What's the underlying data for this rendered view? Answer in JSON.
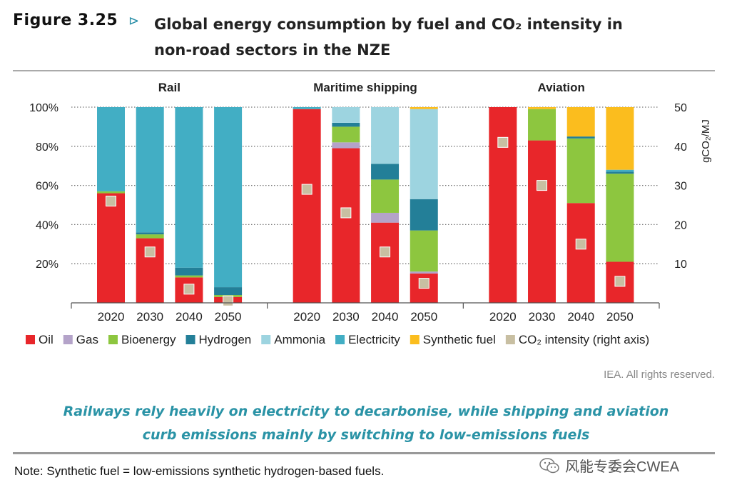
{
  "figure": {
    "label": "Figure 3.25",
    "arrow": "⊳",
    "title": "Global energy consumption by fuel and CO₂ intensity in non-road sectors in the NZE"
  },
  "rights": "IEA. All rights reserved.",
  "caption": {
    "line1": "Railways rely heavily on electricity to decarbonise, while shipping and aviation",
    "line2": "curb emissions mainly by switching to low-emissions fuels"
  },
  "note": "Note: Synthetic fuel = low-emissions synthetic hydrogen-based fuels.",
  "watermark": "风能专委会CWEA",
  "colors": {
    "Oil": "#e8262a",
    "Gas": "#b4a3c9",
    "Bioenergy": "#8dc63f",
    "Hydrogen": "#237f98",
    "Ammonia": "#9dd4e0",
    "Electricity": "#42aec4",
    "Synthetic fuel": "#fbbd1e",
    "CO2 intensity": "#c8bfa2"
  },
  "chart_data": {
    "type": "bar",
    "stacked": true,
    "y_left": {
      "ylim": [
        0,
        100
      ],
      "ticks": [
        20,
        40,
        60,
        80,
        100
      ],
      "tick_labels": [
        "20%",
        "40%",
        "60%",
        "80%",
        "100%"
      ]
    },
    "y_right": {
      "ylim": [
        0,
        50
      ],
      "ticks": [
        10,
        20,
        30,
        40,
        50
      ],
      "tick_labels": [
        "10",
        "20",
        "30",
        "40",
        "50"
      ],
      "label": "gCO₂/MJ"
    },
    "fuels": [
      "Oil",
      "Gas",
      "Bioenergy",
      "Hydrogen",
      "Ammonia",
      "Electricity",
      "Synthetic fuel"
    ],
    "legend": [
      "Oil",
      "Gas",
      "Bioenergy",
      "Hydrogen",
      "Ammonia",
      "Electricity",
      "Synthetic fuel",
      "CO₂ intensity (right axis)"
    ],
    "panels": [
      {
        "title": "Rail",
        "categories": [
          "2020",
          "2030",
          "2040",
          "2050"
        ],
        "series": [
          {
            "name": "Oil",
            "values": [
              56,
              33,
              13,
              3
            ]
          },
          {
            "name": "Gas",
            "values": [
              0,
              0,
              0,
              0
            ]
          },
          {
            "name": "Bioenergy",
            "values": [
              1,
              2,
              1,
              1
            ]
          },
          {
            "name": "Hydrogen",
            "values": [
              0,
              1,
              4,
              4
            ]
          },
          {
            "name": "Ammonia",
            "values": [
              0,
              0,
              0,
              0
            ]
          },
          {
            "name": "Electricity",
            "values": [
              43,
              64,
              82,
              92
            ]
          },
          {
            "name": "Synthetic fuel",
            "values": [
              0,
              0,
              0,
              0
            ]
          }
        ],
        "co2_intensity": [
          26,
          13,
          3.5,
          0.5
        ]
      },
      {
        "title": "Maritime shipping",
        "categories": [
          "2020",
          "2030",
          "2040",
          "2050"
        ],
        "series": [
          {
            "name": "Oil",
            "values": [
              99,
              79,
              41,
              15
            ]
          },
          {
            "name": "Gas",
            "values": [
              0,
              3,
              5,
              1
            ]
          },
          {
            "name": "Bioenergy",
            "values": [
              0,
              8,
              17,
              21
            ]
          },
          {
            "name": "Hydrogen",
            "values": [
              0,
              2,
              8,
              16
            ]
          },
          {
            "name": "Ammonia",
            "values": [
              0,
              8,
              29,
              46
            ]
          },
          {
            "name": "Electricity",
            "values": [
              1,
              0,
              0,
              0
            ]
          },
          {
            "name": "Synthetic fuel",
            "values": [
              0,
              0,
              0,
              1
            ]
          }
        ],
        "co2_intensity": [
          29,
          23,
          13,
          5
        ]
      },
      {
        "title": "Aviation",
        "categories": [
          "2020",
          "2030",
          "2040",
          "2050"
        ],
        "series": [
          {
            "name": "Oil",
            "values": [
              100,
              83,
              51,
              21
            ]
          },
          {
            "name": "Gas",
            "values": [
              0,
              0,
              0,
              0
            ]
          },
          {
            "name": "Bioenergy",
            "values": [
              0,
              16,
              33,
              45
            ]
          },
          {
            "name": "Hydrogen",
            "values": [
              0,
              0,
              1,
              1
            ]
          },
          {
            "name": "Ammonia",
            "values": [
              0,
              0,
              0,
              0
            ]
          },
          {
            "name": "Electricity",
            "values": [
              0,
              0,
              0,
              1
            ]
          },
          {
            "name": "Synthetic fuel",
            "values": [
              0,
              1,
              15,
              32
            ]
          }
        ],
        "co2_intensity": [
          41,
          30,
          15,
          5.5
        ]
      }
    ]
  }
}
